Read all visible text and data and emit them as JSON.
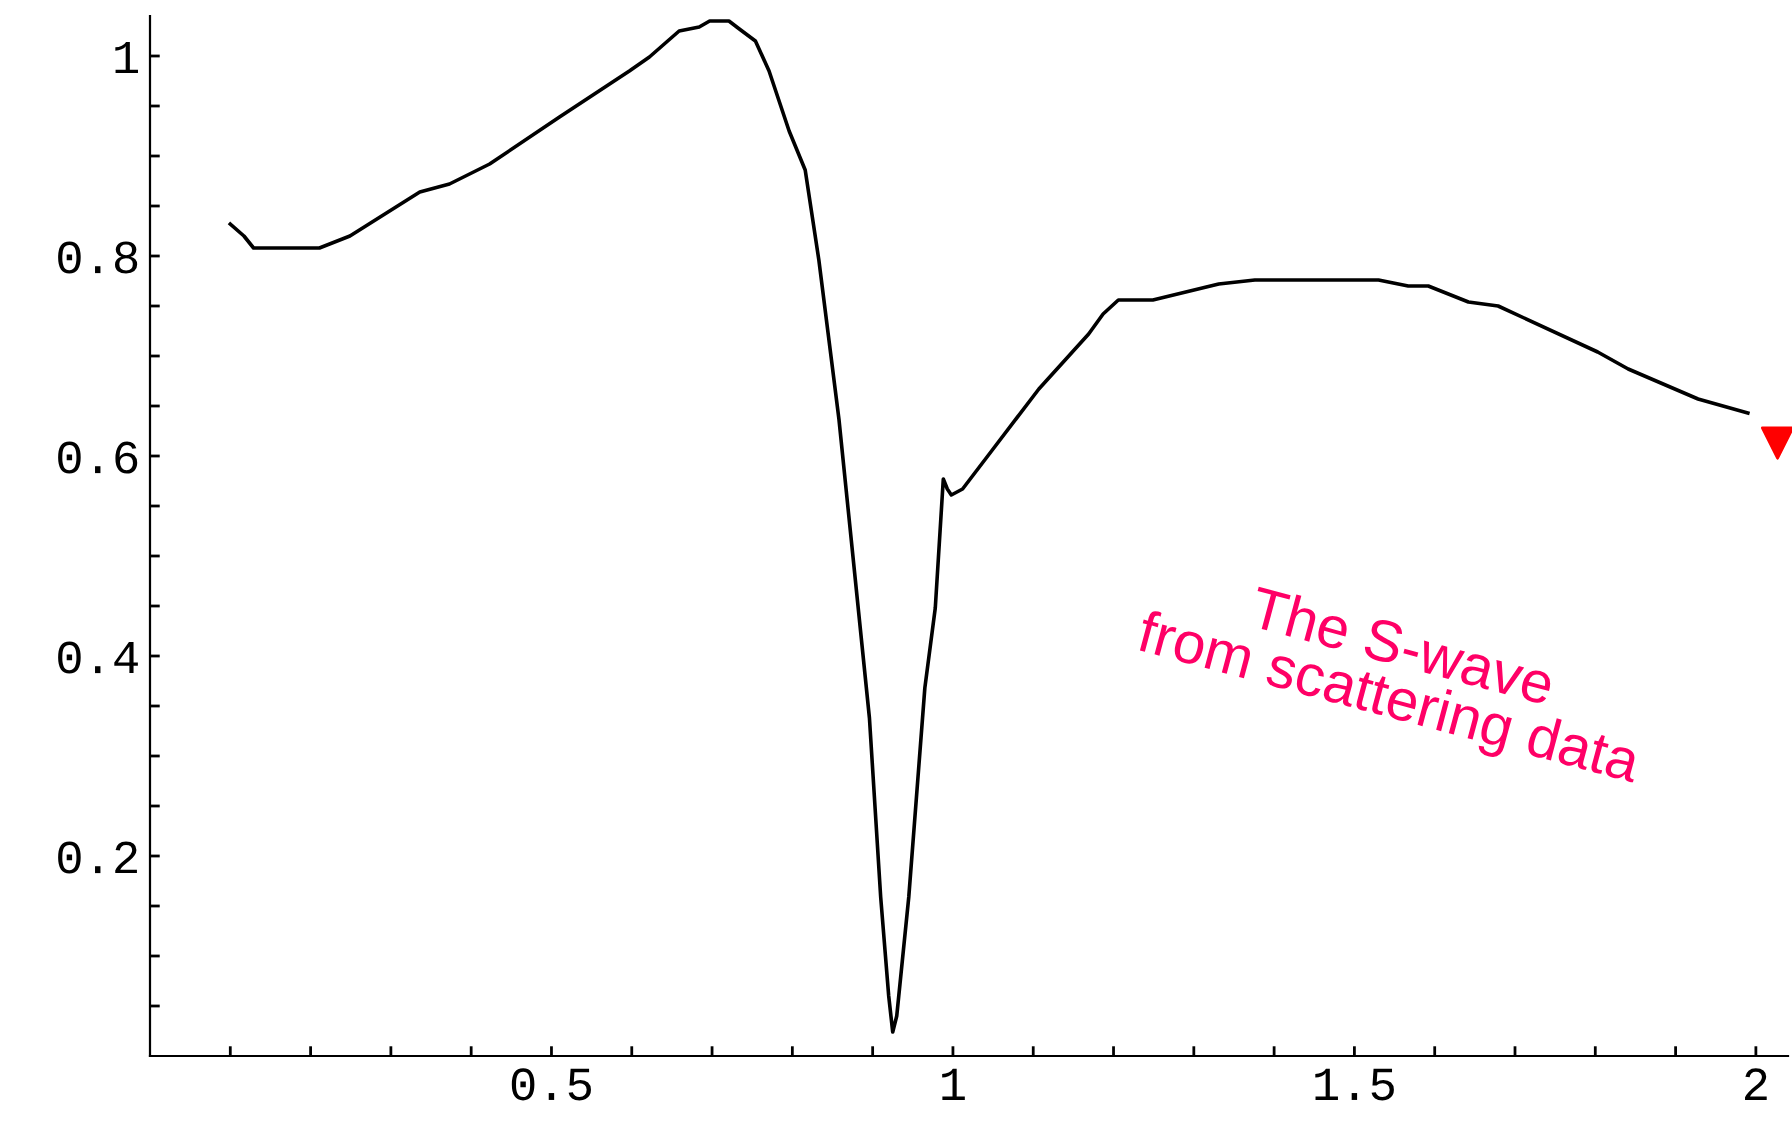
{
  "chart_data": {
    "type": "line",
    "x": [
      0.1,
      0.117,
      0.129,
      0.211,
      0.249,
      0.336,
      0.373,
      0.423,
      0.51,
      0.597,
      0.622,
      0.659,
      0.684,
      0.697,
      0.721,
      0.734,
      0.754,
      0.771,
      0.796,
      0.816,
      0.833,
      0.858,
      0.896,
      0.91,
      0.92,
      0.925,
      0.93,
      0.945,
      0.965,
      0.978,
      0.988,
      0.993,
      0.998,
      1.012,
      1.05,
      1.107,
      1.169,
      1.187,
      1.206,
      1.249,
      1.331,
      1.376,
      1.53,
      1.567,
      1.592,
      1.642,
      1.679,
      1.803,
      1.841,
      1.928,
      1.99
    ],
    "series": [
      {
        "color": "#000000",
        "values": [
          0.832,
          0.82,
          0.808,
          0.808,
          0.82,
          0.864,
          0.872,
          0.892,
          0.939,
          0.985,
          0.999,
          1.025,
          1.029,
          1.035,
          1.035,
          1.027,
          1.015,
          0.985,
          0.925,
          0.886,
          0.796,
          0.637,
          0.338,
          0.159,
          0.06,
          0.024,
          0.04,
          0.159,
          0.368,
          0.448,
          0.577,
          0.567,
          0.561,
          0.567,
          0.607,
          0.667,
          0.722,
          0.742,
          0.756,
          0.756,
          0.772,
          0.776,
          0.776,
          0.77,
          0.77,
          0.754,
          0.75,
          0.704,
          0.687,
          0.657,
          0.643
        ]
      },
      {
        "type": "scatter",
        "color": "#ff0000",
        "marker": "triangle",
        "x": [
          2.027
        ],
        "values": [
          0.613
        ]
      }
    ],
    "annotations": [
      "The S-wave\nfrom scattering data"
    ],
    "xlim": [
      0,
      2.04
    ],
    "ylim": [
      0,
      1.04
    ],
    "xticks": [
      {
        "value": 0.1,
        "label": null
      },
      {
        "value": 0.2,
        "label": null
      },
      {
        "value": 0.3,
        "label": null
      },
      {
        "value": 0.4,
        "label": null
      },
      0.5,
      {
        "value": 0.6,
        "label": null
      },
      {
        "value": 0.7,
        "label": null
      },
      {
        "value": 0.8,
        "label": null
      },
      {
        "value": 0.9,
        "label": null
      },
      1,
      {
        "value": 1.1,
        "label": null
      },
      {
        "value": 1.2,
        "label": null
      },
      {
        "value": 1.3,
        "label": null
      },
      {
        "value": 1.4,
        "label": null
      },
      1.5,
      {
        "value": 1.6,
        "label": null
      },
      {
        "value": 1.7,
        "label": null
      },
      {
        "value": 1.8,
        "label": null
      },
      {
        "value": 1.9,
        "label": null
      },
      2
    ],
    "yticks": [
      {
        "value": 0.05,
        "label": null
      },
      {
        "value": 0.1,
        "label": null
      },
      {
        "value": 0.15,
        "label": null
      },
      0.2,
      {
        "value": 0.25,
        "label": null
      },
      {
        "value": 0.3,
        "label": null
      },
      {
        "value": 0.35,
        "label": null
      },
      0.4,
      {
        "value": 0.45,
        "label": null
      },
      {
        "value": 0.5,
        "label": null
      },
      {
        "value": 0.55,
        "label": null
      },
      0.6,
      {
        "value": 0.65,
        "label": null
      },
      {
        "value": 0.7,
        "label": null
      },
      {
        "value": 0.75,
        "label": null
      },
      0.8,
      {
        "value": 0.85,
        "label": null
      },
      {
        "value": 0.9,
        "label": null
      },
      {
        "value": 0.95,
        "label": null
      },
      1
    ],
    "grid": false,
    "legend": false
  }
}
